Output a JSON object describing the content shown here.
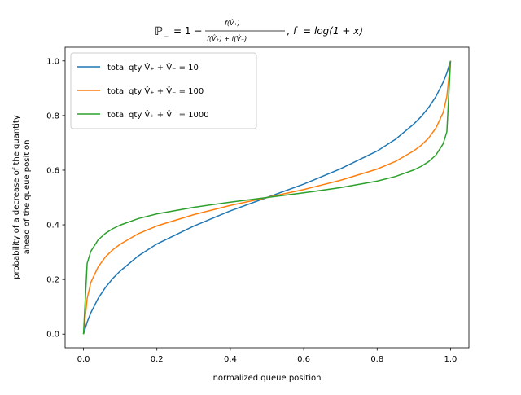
{
  "chart_data": {
    "type": "line",
    "title": "ℙ₋ = 1 − f(V̂₊) / (f(V̂₊) + f(V̂₋)), f = log(1 + x)",
    "xlabel": "normalized queue position",
    "ylabel_lines": [
      "probability of a decrease of the quantity",
      "ahead of the queue position"
    ],
    "xlim": [
      -0.05,
      1.05
    ],
    "ylim": [
      -0.05,
      1.05
    ],
    "xticks": [
      0.0,
      0.2,
      0.4,
      0.6,
      0.8,
      1.0
    ],
    "yticks": [
      0.0,
      0.2,
      0.4,
      0.6,
      0.8,
      1.0
    ],
    "xtick_labels": [
      "0.0",
      "0.2",
      "0.4",
      "0.6",
      "0.8",
      "1.0"
    ],
    "ytick_labels": [
      "0.0",
      "0.2",
      "0.4",
      "0.6",
      "0.8",
      "1.0"
    ],
    "grid": false,
    "legend_position": "upper-left",
    "series": [
      {
        "name": "total qty V̂₊ + V̂₋ = 10",
        "total_qty": 10,
        "color": "#1f77b4",
        "x": [
          0.0,
          0.01,
          0.02,
          0.04,
          0.06,
          0.08,
          0.1,
          0.15,
          0.2,
          0.3,
          0.4,
          0.5,
          0.6,
          0.7,
          0.8,
          0.85,
          0.9,
          0.92,
          0.94,
          0.96,
          0.98,
          0.99,
          1.0
        ],
        "y": [
          0.0,
          0.044,
          0.078,
          0.131,
          0.171,
          0.204,
          0.231,
          0.287,
          0.33,
          0.395,
          0.451,
          0.5,
          0.549,
          0.605,
          0.67,
          0.713,
          0.769,
          0.796,
          0.829,
          0.869,
          0.922,
          0.956,
          1.0
        ]
      },
      {
        "name": "total qty V̂₊ + V̂₋ = 100",
        "total_qty": 100,
        "color": "#ff7f0e",
        "x": [
          0.0,
          0.01,
          0.02,
          0.04,
          0.06,
          0.08,
          0.1,
          0.15,
          0.2,
          0.3,
          0.4,
          0.5,
          0.6,
          0.7,
          0.8,
          0.85,
          0.9,
          0.92,
          0.94,
          0.96,
          0.98,
          0.99,
          1.0
        ],
        "y": [
          0.0,
          0.13,
          0.189,
          0.246,
          0.283,
          0.309,
          0.329,
          0.368,
          0.396,
          0.437,
          0.471,
          0.5,
          0.529,
          0.563,
          0.604,
          0.632,
          0.671,
          0.691,
          0.717,
          0.754,
          0.811,
          0.87,
          1.0
        ]
      },
      {
        "name": "total qty V̂₊ + V̂₋ = 1000",
        "total_qty": 1000,
        "color": "#2ca02c",
        "x": [
          0.0,
          0.01,
          0.02,
          0.04,
          0.06,
          0.08,
          0.1,
          0.15,
          0.2,
          0.3,
          0.4,
          0.5,
          0.6,
          0.7,
          0.8,
          0.85,
          0.9,
          0.92,
          0.94,
          0.96,
          0.98,
          0.99,
          1.0
        ],
        "y": [
          0.0,
          0.259,
          0.303,
          0.345,
          0.369,
          0.386,
          0.399,
          0.423,
          0.44,
          0.464,
          0.483,
          0.5,
          0.517,
          0.536,
          0.56,
          0.577,
          0.601,
          0.614,
          0.631,
          0.655,
          0.697,
          0.741,
          1.0
        ]
      }
    ]
  }
}
